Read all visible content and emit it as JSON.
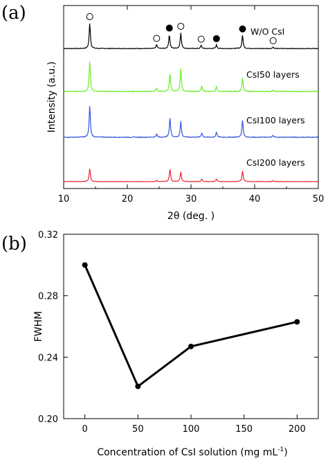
{
  "chart_data": [
    {
      "type": "line",
      "panel_label": "(a)",
      "xlabel": "2θ (deg. )",
      "ylabel": "Intensity (a.u.)",
      "xlim": [
        10,
        50
      ],
      "xticks": [
        10,
        20,
        30,
        40,
        50
      ],
      "grid": false,
      "series": [
        {
          "name": "W/O CsI",
          "color": "#000000",
          "peaks": [
            [
              14.1,
              1.0
            ],
            [
              24.6,
              0.15
            ],
            [
              26.6,
              0.55
            ],
            [
              28.4,
              0.62
            ],
            [
              31.6,
              0.12
            ],
            [
              34.0,
              0.14
            ],
            [
              38.1,
              0.52
            ],
            [
              42.9,
              0.06
            ]
          ]
        },
        {
          "name": "CsI50 layers",
          "color": "#66ee22",
          "peaks": [
            [
              14.1,
              1.0
            ],
            [
              24.6,
              0.12
            ],
            [
              26.7,
              0.6
            ],
            [
              28.4,
              0.75
            ],
            [
              31.7,
              0.18
            ],
            [
              34.0,
              0.15
            ],
            [
              38.1,
              0.45
            ],
            [
              42.9,
              0.05
            ]
          ]
        },
        {
          "name": "CsI100 layers",
          "color": "#3355dd",
          "peaks": [
            [
              14.1,
              1.0
            ],
            [
              24.6,
              0.1
            ],
            [
              26.7,
              0.62
            ],
            [
              28.4,
              0.5
            ],
            [
              31.7,
              0.14
            ],
            [
              34.0,
              0.16
            ],
            [
              38.1,
              0.55
            ],
            [
              42.9,
              0.05
            ]
          ]
        },
        {
          "name": "CsI200 layers",
          "color": "#ee2233",
          "peaks": [
            [
              14.1,
              0.8
            ],
            [
              24.6,
              0.08
            ],
            [
              26.7,
              0.75
            ],
            [
              28.4,
              0.6
            ],
            [
              31.7,
              0.15
            ],
            [
              34.0,
              0.15
            ],
            [
              38.1,
              0.65
            ],
            [
              42.9,
              0.05
            ]
          ]
        }
      ],
      "markers": [
        {
          "symbol": "open-circle",
          "x": 14.1
        },
        {
          "symbol": "open-circle",
          "x": 24.6
        },
        {
          "symbol": "filled-circle",
          "x": 26.6
        },
        {
          "symbol": "open-circle",
          "x": 28.4
        },
        {
          "symbol": "open-circle",
          "x": 31.6
        },
        {
          "symbol": "filled-circle",
          "x": 34.0
        },
        {
          "symbol": "filled-circle",
          "x": 38.1
        },
        {
          "symbol": "open-circle",
          "x": 42.9
        }
      ]
    },
    {
      "type": "line",
      "panel_label": "(b)",
      "xlabel": "Concentration of CsI solution (mg mL",
      "xlabel_sup": "-1",
      "xlabel_end": ")",
      "ylabel": "FWHM",
      "xlim": [
        -20,
        220
      ],
      "ylim": [
        0.2,
        0.32
      ],
      "xticks": [
        0,
        50,
        100,
        150,
        200
      ],
      "yticks": [
        "0.20",
        "0.24",
        "0.28",
        "0.32"
      ],
      "grid": false,
      "x": [
        0,
        50,
        100,
        200
      ],
      "y": [
        0.3,
        0.221,
        0.247,
        0.263
      ],
      "color": "#000000"
    }
  ]
}
